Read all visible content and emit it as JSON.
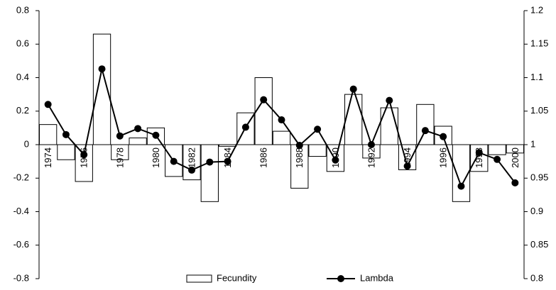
{
  "chart_data": {
    "type": "bar",
    "categories": [
      "1974",
      null,
      "1976",
      null,
      "1978",
      null,
      "1980",
      null,
      "1982",
      null,
      "1984",
      null,
      "1986",
      null,
      "1988",
      null,
      "1990",
      null,
      "1992",
      null,
      "1994",
      null,
      "1996",
      null,
      "1998",
      null,
      "2000"
    ],
    "series": [
      {
        "name": "Fecundity",
        "type": "bar",
        "color": "#ffffff",
        "values": [
          0.12,
          -0.09,
          -0.22,
          0.66,
          -0.09,
          0.04,
          0.1,
          -0.19,
          -0.21,
          -0.34,
          -0.01,
          0.19,
          0.4,
          0.08,
          -0.26,
          -0.07,
          -0.16,
          0.3,
          -0.08,
          0.22,
          -0.15,
          0.24,
          0.11,
          -0.34,
          -0.16,
          -0.06,
          -0.05
        ]
      },
      {
        "name": "Lambda",
        "type": "line",
        "axis": "y2",
        "color": "#000000",
        "values": [
          1.06,
          1.015,
          0.985,
          1.113,
          1.013,
          1.024,
          1.014,
          0.975,
          0.962,
          0.974,
          0.975,
          1.026,
          1.067,
          1.037,
          0.999,
          1.023,
          0.977,
          1.083,
          1.0,
          1.066,
          0.968,
          1.021,
          1.012,
          0.938,
          0.988,
          0.978,
          0.943
        ]
      }
    ],
    "ylim": [
      -0.8,
      0.8
    ],
    "yticks": [
      -0.8,
      -0.6,
      -0.4,
      -0.2,
      0,
      0.2,
      0.4,
      0.6,
      0.8
    ],
    "y2lim": [
      0.8,
      1.2
    ],
    "y2ticks": [
      0.8,
      0.85,
      0.9,
      0.95,
      1,
      1.05,
      1.1,
      1.15,
      1.2
    ],
    "grid": false,
    "legend": "bottom"
  }
}
